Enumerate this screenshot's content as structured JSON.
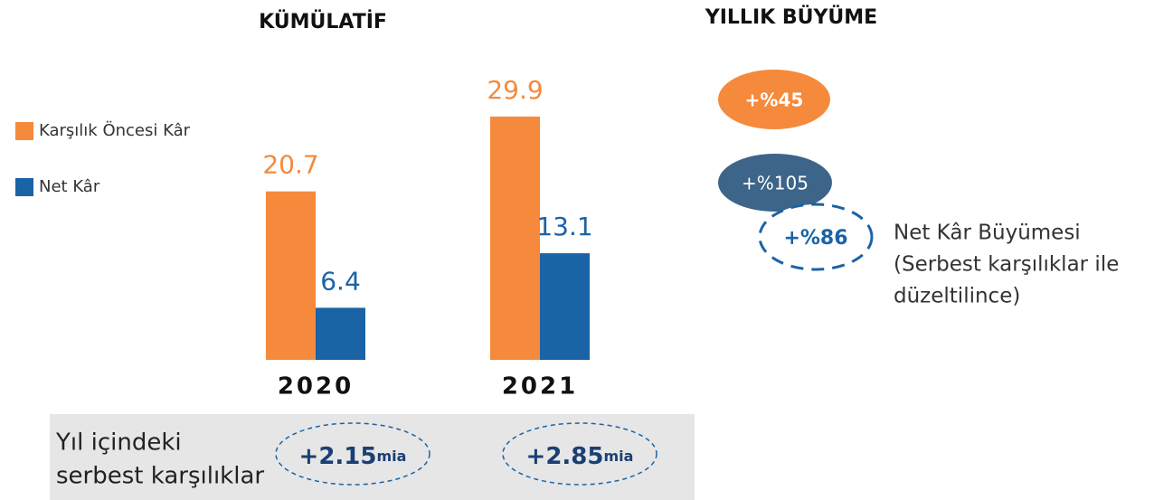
{
  "chart_data": {
    "type": "bar",
    "title": "KÜMÜLATİF",
    "categories": [
      "2020",
      "2021"
    ],
    "series": [
      {
        "name": "Karşılık Öncesi Kâr",
        "color": "#f58a3c",
        "values": [
          20.7,
          29.9
        ]
      },
      {
        "name": "Net Kâr",
        "color": "#1a63a5",
        "values": [
          6.4,
          13.1
        ]
      }
    ]
  },
  "growth": {
    "title": "YILLIK BÜYÜME",
    "badges": [
      {
        "text": "+%45",
        "color": "#f58a3c"
      },
      {
        "text": "+%105",
        "color": "#3d6489"
      },
      {
        "text": "+%86",
        "color": "#1a63a5"
      }
    ],
    "note": [
      "Net Kâr Büyümesi",
      "(Serbest karşılıklar ile",
      "düzeltilince)"
    ]
  },
  "provisions": {
    "label": [
      "Yıl içindeki",
      "serbest karşılıklar"
    ],
    "items": [
      {
        "amount": "+2.15",
        "unit": "mia"
      },
      {
        "amount": "+2.85",
        "unit": "mia"
      }
    ]
  }
}
